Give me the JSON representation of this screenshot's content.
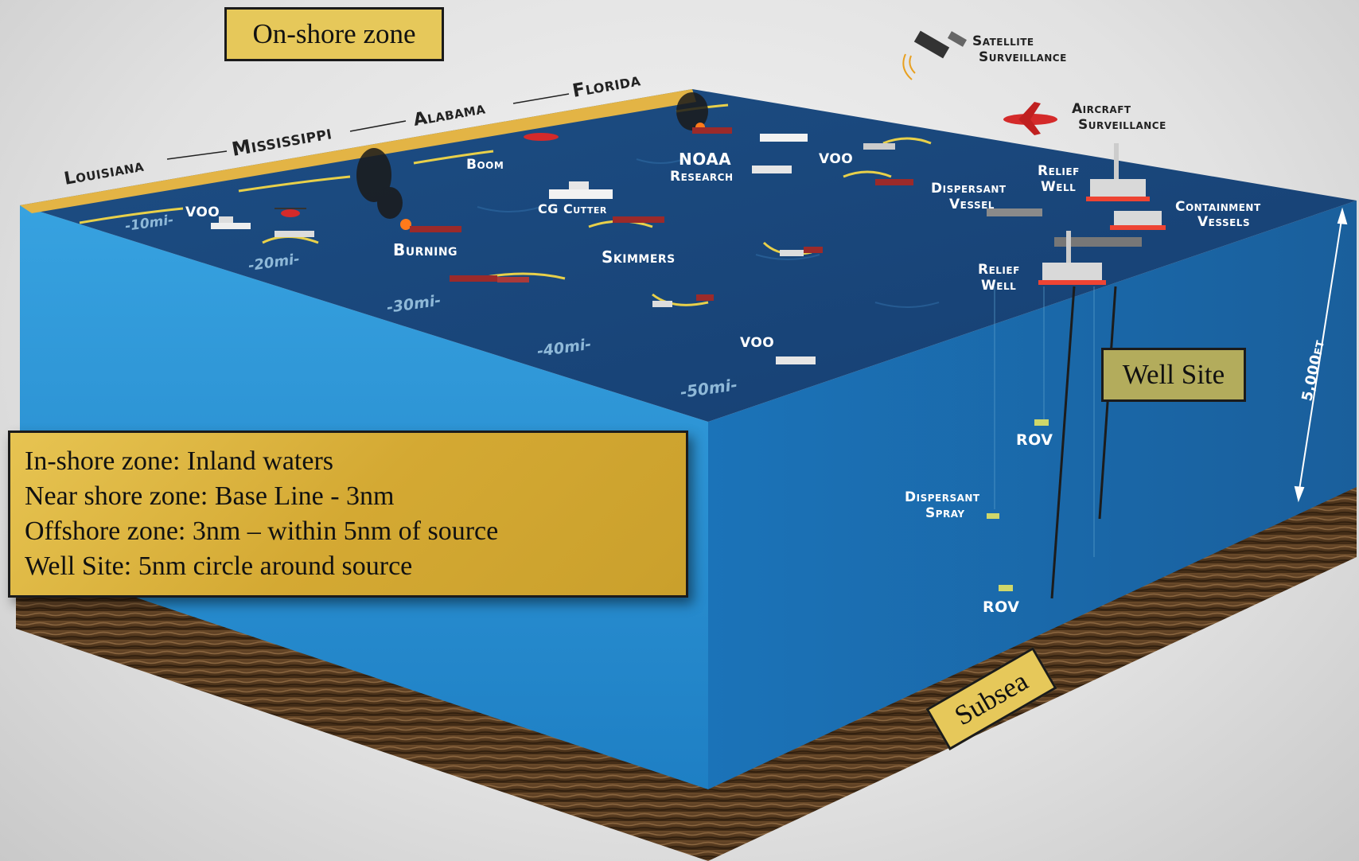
{
  "zones": {
    "onshore": "On-shore zone",
    "wellsite": "Well Site",
    "subsea": "Subsea"
  },
  "legend": {
    "lines": [
      "In-shore zone:  Inland waters",
      "Near shore zone:  Base Line - 3nm",
      "Offshore zone:  3nm – within 5nm of source",
      "Well Site:   5nm circle around source"
    ]
  },
  "states": [
    "Louisiana",
    "Mississippi",
    "Alabama",
    "Florida"
  ],
  "distances": [
    "-10mi-",
    "-20mi-",
    "-30mi-",
    "-40mi-",
    "-50mi-"
  ],
  "labels": {
    "satellite": [
      "Satellite",
      "Surveillance"
    ],
    "aircraft": [
      "Aircraft",
      "Surveillance"
    ],
    "boom": "Boom",
    "noaa": [
      "NOAA",
      "Research"
    ],
    "voo": "VOO",
    "dispersant_vessel": [
      "Dispersant",
      "Vessel"
    ],
    "relief_well": [
      "Relief",
      "Well"
    ],
    "containment": [
      "Containment",
      "Vessels"
    ],
    "cg_cutter": "CG Cutter",
    "burning": "Burning",
    "skimmers": "Skimmers",
    "rov": "ROV",
    "dispersant_spray": [
      "Dispersant",
      "Spray"
    ],
    "depth": "5,000ft"
  },
  "colors": {
    "sea_top": "#1c4f86",
    "water_front": "#2a8fd0",
    "water_side": "#1b6eb0",
    "seabed": "#5a3d22",
    "shore": "#e3b445",
    "zone_box": "#e6c85a"
  }
}
